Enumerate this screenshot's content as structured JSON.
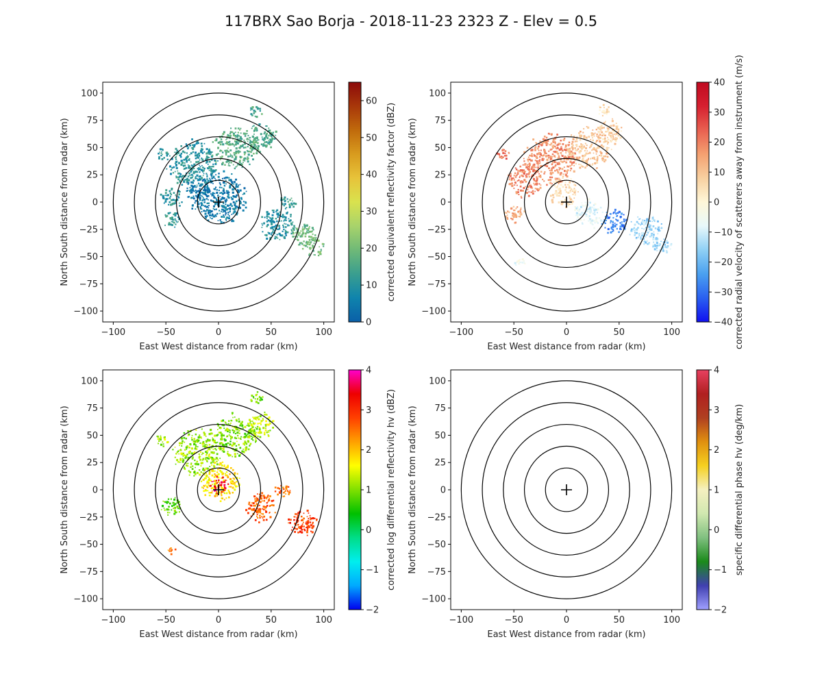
{
  "figure": {
    "title": "117BRX Sao Borja - 2018-11-23 2323 Z -  Elev = 0.5"
  },
  "chart_data": [
    {
      "type": "heatmap",
      "panel": "top-left",
      "field": "reflectivity",
      "xlabel": "East West distance from radar (km)",
      "ylabel": "North South distance from radar (km)",
      "xlim": [
        -110,
        110
      ],
      "ylim": [
        -110,
        110
      ],
      "xticks": [
        -100,
        -50,
        0,
        50,
        100
      ],
      "yticks": [
        -100,
        -75,
        -50,
        -25,
        0,
        25,
        50,
        75,
        100
      ],
      "range_rings_km": [
        20,
        40,
        60,
        80,
        100
      ],
      "colorbar": {
        "label": "corrected equivalent reflectivity factor (dBZ)",
        "min": 0,
        "max": 65,
        "ticks": [
          0,
          10,
          20,
          30,
          40,
          50,
          60
        ],
        "colors": [
          "#0a5fa8",
          "#0f84ad",
          "#3a9e8f",
          "#6fb977",
          "#a8d36b",
          "#d9e24e",
          "#e7c33a",
          "#d89b1e",
          "#c06a0c",
          "#a8370a",
          "#8c0a0a"
        ]
      },
      "echoes": [
        {
          "x": 0,
          "y": 5,
          "r": 25,
          "value": 5
        },
        {
          "x": -25,
          "y": 35,
          "r": 22,
          "value": 10
        },
        {
          "x": 15,
          "y": 50,
          "r": 20,
          "value": 17
        },
        {
          "x": 40,
          "y": 60,
          "r": 14,
          "value": 15
        },
        {
          "x": -45,
          "y": 5,
          "r": 10,
          "value": 10
        },
        {
          "x": -45,
          "y": -15,
          "r": 8,
          "value": 12
        },
        {
          "x": 55,
          "y": -20,
          "r": 16,
          "value": 10
        },
        {
          "x": 80,
          "y": -30,
          "r": 12,
          "value": 18
        },
        {
          "x": 90,
          "y": -40,
          "r": 9,
          "value": 20
        },
        {
          "x": -55,
          "y": 45,
          "r": 6,
          "value": 12
        },
        {
          "x": 35,
          "y": 85,
          "r": 6,
          "value": 15
        },
        {
          "x": -20,
          "y": 10,
          "r": 12,
          "value": 4
        },
        {
          "x": 65,
          "y": 0,
          "r": 7,
          "value": 12
        }
      ]
    },
    {
      "type": "heatmap",
      "panel": "top-right",
      "field": "velocity",
      "xlabel": "East West distance from radar (km)",
      "ylabel": "North South distance from radar (km)",
      "xlim": [
        -110,
        110
      ],
      "ylim": [
        -110,
        110
      ],
      "xticks": [
        -100,
        -50,
        0,
        50,
        100
      ],
      "yticks": [
        -100,
        -75,
        -50,
        -25,
        0,
        25,
        50,
        75,
        100
      ],
      "range_rings_km": [
        20,
        40,
        60,
        80,
        100
      ],
      "colorbar": {
        "label": "corrected radial velocity of scatterers away from instrument (m/s)",
        "min": -40,
        "max": 40,
        "ticks": [
          -40,
          -30,
          -20,
          -10,
          0,
          10,
          20,
          30,
          40
        ],
        "colors": [
          "#1010f0",
          "#2a60f0",
          "#4aa0f0",
          "#8fd0f5",
          "#e8f8fa",
          "#fff7d8",
          "#f8d0a0",
          "#f4a070",
          "#e86050",
          "#d62030",
          "#c00a20"
        ]
      },
      "echoes": [
        {
          "x": -15,
          "y": 40,
          "r": 24,
          "value": 18
        },
        {
          "x": -40,
          "y": 20,
          "r": 16,
          "value": 20
        },
        {
          "x": 20,
          "y": 50,
          "r": 20,
          "value": 10
        },
        {
          "x": 40,
          "y": 65,
          "r": 12,
          "value": 8
        },
        {
          "x": -50,
          "y": -10,
          "r": 9,
          "value": 14
        },
        {
          "x": -5,
          "y": 10,
          "r": 14,
          "value": 6
        },
        {
          "x": 20,
          "y": -10,
          "r": 14,
          "value": -8
        },
        {
          "x": 45,
          "y": -18,
          "r": 12,
          "value": -28
        },
        {
          "x": 75,
          "y": -25,
          "r": 15,
          "value": -15
        },
        {
          "x": 90,
          "y": -40,
          "r": 9,
          "value": -14
        },
        {
          "x": -60,
          "y": 45,
          "r": 6,
          "value": 22
        },
        {
          "x": 35,
          "y": 85,
          "r": 6,
          "value": 5
        },
        {
          "x": -45,
          "y": -55,
          "r": 5,
          "value": -5
        }
      ]
    },
    {
      "type": "heatmap",
      "panel": "bottom-left",
      "field": "differential_reflectivity",
      "xlabel": "East West distance from radar (km)",
      "ylabel": "North South distance from radar (km)",
      "xlim": [
        -110,
        110
      ],
      "ylim": [
        -110,
        110
      ],
      "xticks": [
        -100,
        -50,
        0,
        50,
        100
      ],
      "yticks": [
        -100,
        -75,
        -50,
        -25,
        0,
        25,
        50,
        75,
        100
      ],
      "range_rings_km": [
        20,
        40,
        60,
        80,
        100
      ],
      "colorbar": {
        "label": "corrected log differential reflectivity hv (dBZ)",
        "min": -2,
        "max": 4,
        "ticks": [
          -2,
          -1,
          0,
          1,
          2,
          3,
          4
        ],
        "colors": [
          "#0000ee",
          "#00aaff",
          "#00eeee",
          "#00dd88",
          "#00c000",
          "#80e000",
          "#ffff00",
          "#ffa000",
          "#ff4000",
          "#ee0000",
          "#ff00cc"
        ]
      },
      "echoes": [
        {
          "x": -20,
          "y": 35,
          "r": 22,
          "value": 1.1
        },
        {
          "x": 15,
          "y": 50,
          "r": 20,
          "value": 1.0
        },
        {
          "x": 40,
          "y": 60,
          "r": 12,
          "value": 1.3
        },
        {
          "x": 0,
          "y": 8,
          "r": 18,
          "value": 1.8
        },
        {
          "x": 0,
          "y": 5,
          "r": 8,
          "value": 3.5
        },
        {
          "x": -45,
          "y": -15,
          "r": 9,
          "value": 0.8
        },
        {
          "x": 40,
          "y": -15,
          "r": 14,
          "value": 2.7
        },
        {
          "x": 80,
          "y": -30,
          "r": 13,
          "value": 2.9
        },
        {
          "x": 60,
          "y": 0,
          "r": 7,
          "value": 2.6
        },
        {
          "x": -55,
          "y": 45,
          "r": 6,
          "value": 1.2
        },
        {
          "x": 35,
          "y": 85,
          "r": 6,
          "value": 0.9
        },
        {
          "x": -45,
          "y": -55,
          "r": 4,
          "value": 2.4
        }
      ]
    },
    {
      "type": "heatmap",
      "panel": "bottom-right",
      "field": "specific_differential_phase",
      "xlabel": "East West distance from radar (km)",
      "ylabel": "North South distance from radar (km)",
      "xlim": [
        -110,
        110
      ],
      "ylim": [
        -110,
        110
      ],
      "xticks": [
        -100,
        -50,
        0,
        50,
        100
      ],
      "yticks": [
        -100,
        -75,
        -50,
        -25,
        0,
        25,
        50,
        75,
        100
      ],
      "range_rings_km": [
        20,
        40,
        60,
        80,
        100
      ],
      "colorbar": {
        "label": "specific differential phase hv (deg/km)",
        "min": -2,
        "max": 4,
        "ticks": [
          -2,
          -1,
          0,
          1,
          2,
          3,
          4
        ],
        "colors": [
          "#a0a0ff",
          "#4040b0",
          "#1a8a1a",
          "#80c080",
          "#d0e8b0",
          "#f5f0c0",
          "#f5d020",
          "#e09010",
          "#b04020",
          "#b02020",
          "#e84060"
        ]
      },
      "echoes": []
    }
  ]
}
